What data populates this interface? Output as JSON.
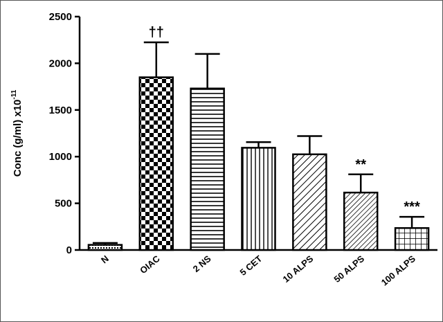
{
  "chart_data": {
    "type": "bar",
    "categories": [
      "N",
      "OIAC",
      "2 NS",
      "5 CET",
      "10 ALPS",
      "50 ALPS",
      "100 ALPS"
    ],
    "values": [
      55,
      1850,
      1730,
      1095,
      1025,
      615,
      235
    ],
    "errors": [
      20,
      375,
      370,
      60,
      195,
      195,
      120
    ],
    "patterns": [
      "dots",
      "checker",
      "horizontal",
      "vertical",
      "diagonal",
      "diagonal-dense",
      "grid"
    ],
    "annotations": [
      "",
      "††",
      "",
      "",
      "",
      "**",
      "***"
    ],
    "ylabel_main": "Conc (g/ml) x10",
    "ylabel_exp": "-11",
    "xlabel": "",
    "ylim": [
      0,
      2500
    ],
    "yticks": [
      0,
      500,
      1000,
      1500,
      2000,
      2500
    ],
    "grid": false,
    "legend": "none",
    "colors": {
      "bar_stroke": "#000000",
      "fill": "#ffffff",
      "pattern": "#000000"
    }
  }
}
